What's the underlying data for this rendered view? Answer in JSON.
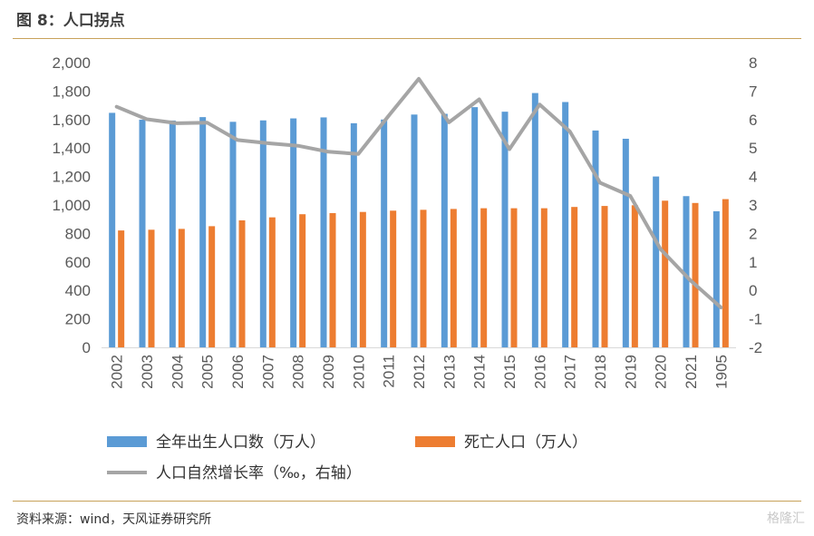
{
  "header": {
    "title": "图 8：人口拐点"
  },
  "footer": {
    "source": "资料来源：wind，天风证券研究所",
    "watermark": "格隆汇"
  },
  "chart_data": {
    "type": "bar",
    "categories": [
      "2002",
      "2003",
      "2004",
      "2005",
      "2006",
      "2007",
      "2008",
      "2009",
      "2010",
      "2011",
      "2012",
      "2013",
      "2014",
      "2015",
      "2016",
      "2017",
      "2018",
      "2019",
      "2020",
      "2021",
      "1905"
    ],
    "series": [
      {
        "name": "全年出生人口数（万人）",
        "type": "bar",
        "axis": "left",
        "color": "#5b9bd5",
        "values": [
          1647,
          1599,
          1593,
          1617,
          1584,
          1594,
          1608,
          1615,
          1574,
          1600,
          1635,
          1640,
          1687,
          1655,
          1786,
          1723,
          1523,
          1465,
          1200,
          1062,
          956
        ]
      },
      {
        "name": "死亡人口（万人）",
        "type": "bar",
        "axis": "left",
        "color": "#ed7d31",
        "values": [
          821,
          826,
          832,
          851,
          892,
          913,
          935,
          943,
          951,
          960,
          966,
          972,
          977,
          977,
          977,
          986,
          993,
          998,
          1030,
          1014,
          1041
        ]
      },
      {
        "name": "人口自然增长率（‰，右轴）",
        "type": "line",
        "axis": "right",
        "color": "#a5a5a5",
        "values": [
          6.45,
          6.01,
          5.87,
          5.89,
          5.28,
          5.17,
          5.08,
          4.87,
          4.79,
          6.13,
          7.43,
          5.9,
          6.71,
          4.96,
          6.53,
          5.58,
          3.78,
          3.32,
          1.45,
          0.34,
          -0.6
        ]
      }
    ],
    "left_axis": {
      "ylim": [
        0,
        2000
      ],
      "ticks": [
        "0",
        "200",
        "400",
        "600",
        "800",
        "1,000",
        "1,200",
        "1,400",
        "1,600",
        "1,800",
        "2,000"
      ]
    },
    "right_axis": {
      "ylim": [
        -2,
        8
      ],
      "ticks": [
        "-2",
        "-1",
        "0",
        "1",
        "2",
        "3",
        "4",
        "5",
        "6",
        "7",
        "8"
      ]
    },
    "grid": false,
    "legend_position": "bottom"
  }
}
